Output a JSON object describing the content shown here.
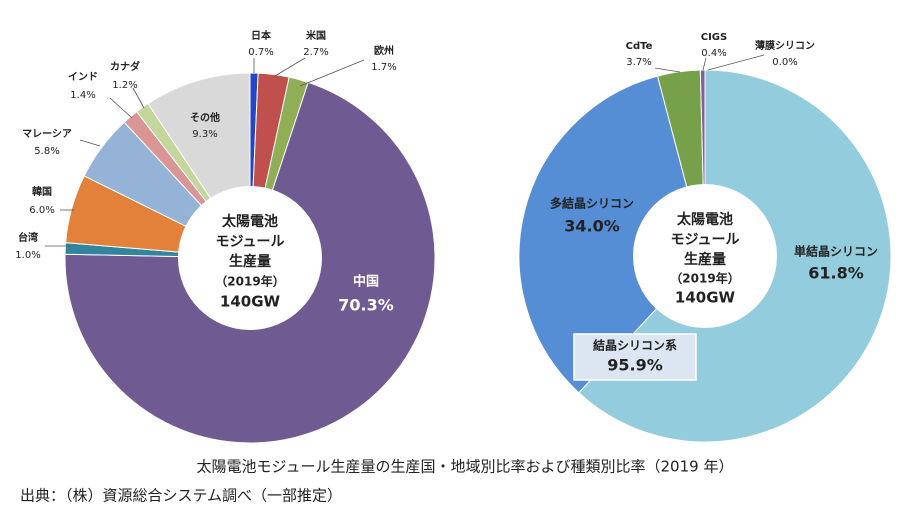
{
  "chart_data": [
    {
      "type": "pie",
      "center_label": [
        "太陽電池",
        "モジュール",
        "生産量",
        "（2019年）",
        "140GW"
      ],
      "categories": [
        "日本",
        "米国",
        "欧州",
        "中国",
        "台湾",
        "韓国",
        "マレーシア",
        "インド",
        "カナダ",
        "その他"
      ],
      "values": [
        0.7,
        2.7,
        1.7,
        70.3,
        1.0,
        6.0,
        5.8,
        1.4,
        1.2,
        9.3
      ],
      "value_labels": [
        "0.7%",
        "2.7%",
        "1.7%",
        "70.3%",
        "1.0%",
        "6.0%",
        "5.8%",
        "1.4%",
        "1.2%",
        "9.3%"
      ],
      "colors": [
        "#2146c7",
        "#c0504d",
        "#8fae55",
        "#6f5a92",
        "#31859c",
        "#e3813a",
        "#95b3d7",
        "#d99694",
        "#c3d69b",
        "#d9d9d9"
      ]
    },
    {
      "type": "pie",
      "center_label": [
        "太陽電池",
        "モジュール",
        "生産量",
        "（2019年）",
        "140GW"
      ],
      "categories": [
        "単結晶シリコン",
        "多結晶シリコン",
        "CdTe",
        "CIGS",
        "薄膜シリコン"
      ],
      "values": [
        61.8,
        34.0,
        3.7,
        0.4,
        0.0
      ],
      "value_labels": [
        "61.8%",
        "34.0%",
        "3.7%",
        "0.4%",
        "0.0%"
      ],
      "colors": [
        "#93cddd",
        "#558ed5",
        "#77a04a",
        "#7f6397",
        "#bfbfbf"
      ],
      "annotation": [
        "結晶シリコン系",
        "95.9%"
      ]
    }
  ],
  "caption": "太陽電池モジュール生産量の生産国・地域別比率および種類別比率（2019 年）",
  "source": "出典：（株）資源総合システム調べ（一部推定）"
}
